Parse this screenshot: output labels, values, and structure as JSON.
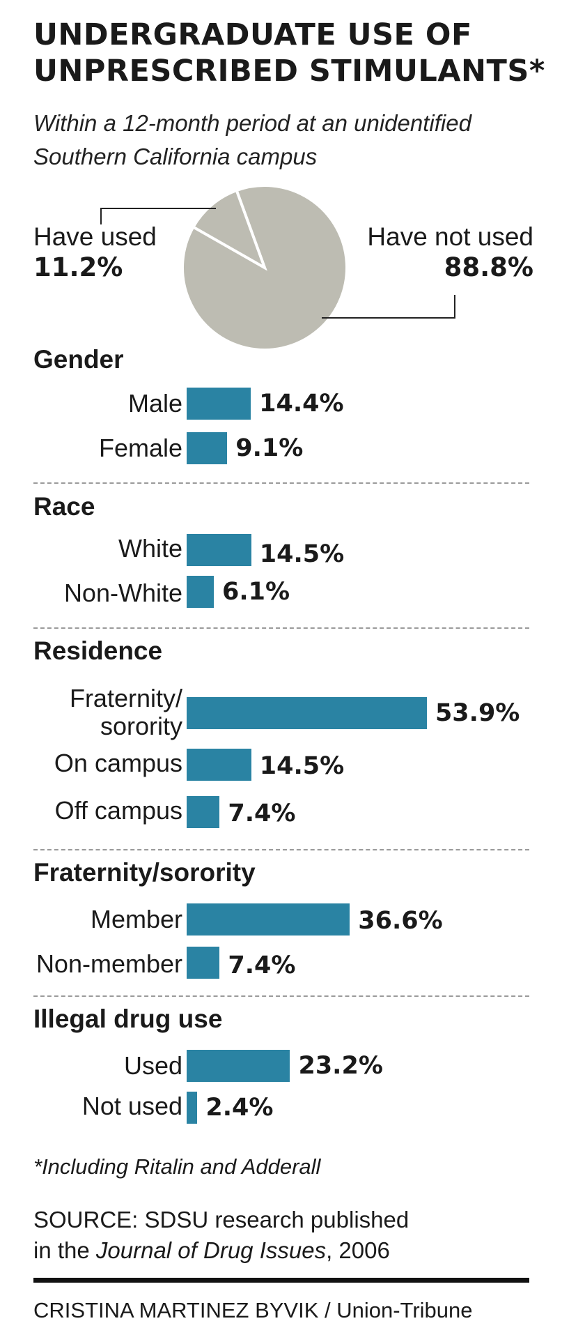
{
  "title": "UNDERGRADUATE USE OF UNPRESCRIBED STIMULANTS*",
  "subtitle": "Within a 12-month period at an unidentified Southern California campus",
  "pie": {
    "used_label": "Have used",
    "used_value": "11.2%",
    "not_used_label": "Have not used",
    "not_used_value": "88.8%"
  },
  "sections": [
    {
      "title": "Gender",
      "items": [
        {
          "label": "Male",
          "value_text": "14.4%"
        },
        {
          "label": "Female",
          "value_text": "9.1%"
        }
      ]
    },
    {
      "title": "Race",
      "items": [
        {
          "label": "White",
          "value_text": "14.5%"
        },
        {
          "label": "Non-White",
          "value_text": "6.1%"
        }
      ]
    },
    {
      "title": "Residence",
      "items": [
        {
          "label_line1": "Fraternity/",
          "label_line2": "sorority",
          "value_text": "53.9%"
        },
        {
          "label": "On campus",
          "value_text": "14.5%"
        },
        {
          "label": "Off campus",
          "value_text": "7.4%"
        }
      ]
    },
    {
      "title": "Fraternity/sorority",
      "items": [
        {
          "label": "Member",
          "value_text": "36.6%"
        },
        {
          "label": "Non-member",
          "value_text": "7.4%"
        }
      ]
    },
    {
      "title": "Illegal drug use",
      "items": [
        {
          "label": "Used",
          "value_text": "23.2%"
        },
        {
          "label": "Not used",
          "value_text": "2.4%"
        }
      ]
    }
  ],
  "footnote": "*Including Ritalin and Adderall",
  "source": {
    "line1": "SOURCE: SDSU research published",
    "line2_prefix": "in the ",
    "line2_journal": "Journal of Drug Issues",
    "line2_suffix": ", 2006"
  },
  "credit": "CRISTINA MARTINEZ BYVIK / Union-Tribune",
  "colors": {
    "bar": "#2a83a3",
    "pie": "#bdbcb2",
    "pie_stroke": "#ffffff",
    "leader": "#222222"
  },
  "chart_data": [
    {
      "type": "pie",
      "labels": [
        "Have used",
        "Have not used"
      ],
      "values": [
        11.2,
        88.8
      ]
    },
    {
      "type": "bar",
      "orientation": "horizontal",
      "groups": [
        {
          "name": "Gender",
          "categories": [
            "Male",
            "Female"
          ],
          "values": [
            14.4,
            9.1
          ]
        },
        {
          "name": "Race",
          "categories": [
            "White",
            "Non-White"
          ],
          "values": [
            14.5,
            6.1
          ]
        },
        {
          "name": "Residence",
          "categories": [
            "Fraternity/sorority",
            "On campus",
            "Off campus"
          ],
          "values": [
            53.9,
            14.5,
            7.4
          ]
        },
        {
          "name": "Fraternity/sorority",
          "categories": [
            "Member",
            "Non-member"
          ],
          "values": [
            36.6,
            7.4
          ]
        },
        {
          "name": "Illegal drug use",
          "categories": [
            "Used",
            "Not used"
          ],
          "values": [
            23.2,
            2.4
          ]
        }
      ],
      "unit": "%"
    }
  ]
}
